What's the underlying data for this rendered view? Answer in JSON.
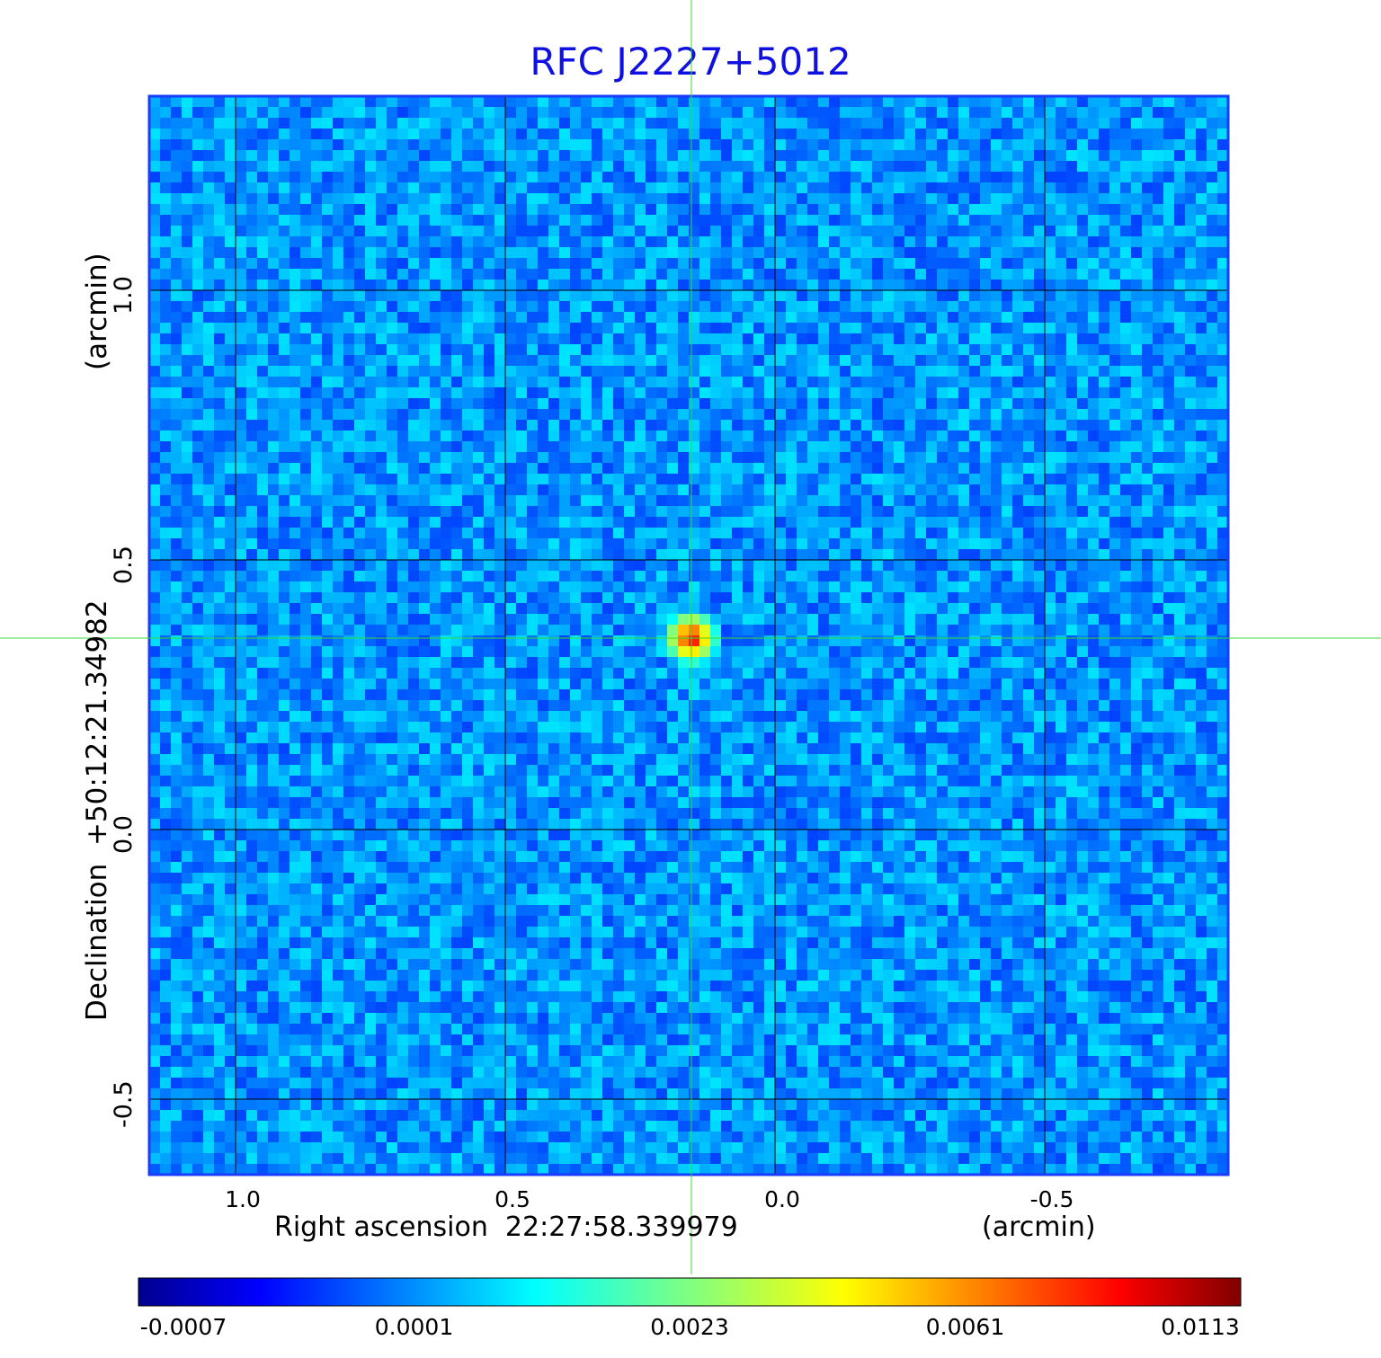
{
  "chart_data": {
    "type": "heatmap",
    "title": "RFC J2227+5012",
    "xlabel": "Right ascension  22:27:58.339979",
    "xunit": "(arcmin)",
    "ylabel": "Declination  +50:12:21.34982",
    "yunit": "(arcmin)",
    "x_range": [
      1.16,
      -0.84
    ],
    "y_range": [
      -0.64,
      1.36
    ],
    "x_ticks": [
      "1.0",
      "0.5",
      "0.0",
      "-0.5"
    ],
    "x_tick_values": [
      1.0,
      0.5,
      0.0,
      -0.5
    ],
    "y_ticks": [
      "1.0",
      "0.5",
      "0.0",
      "-0.5"
    ],
    "y_tick_values": [
      1.0,
      0.5,
      0.0,
      -0.5
    ],
    "grid": true,
    "colormap": "jet",
    "source_peak": {
      "x": 0.155,
      "y": 0.355,
      "value": 0.0113
    },
    "crosshair": {
      "x": 0.155,
      "y": 0.355
    },
    "colorbar": {
      "ticks": [
        "-0.0007",
        "0.0001",
        "0.0023",
        "0.0061",
        "0.0113"
      ],
      "min": -0.0007,
      "max": 0.0113
    },
    "colors": {
      "title": "#1010e0",
      "frame": "#1a3cff",
      "grid": "#000000",
      "crosshair": "#33dd33"
    }
  }
}
